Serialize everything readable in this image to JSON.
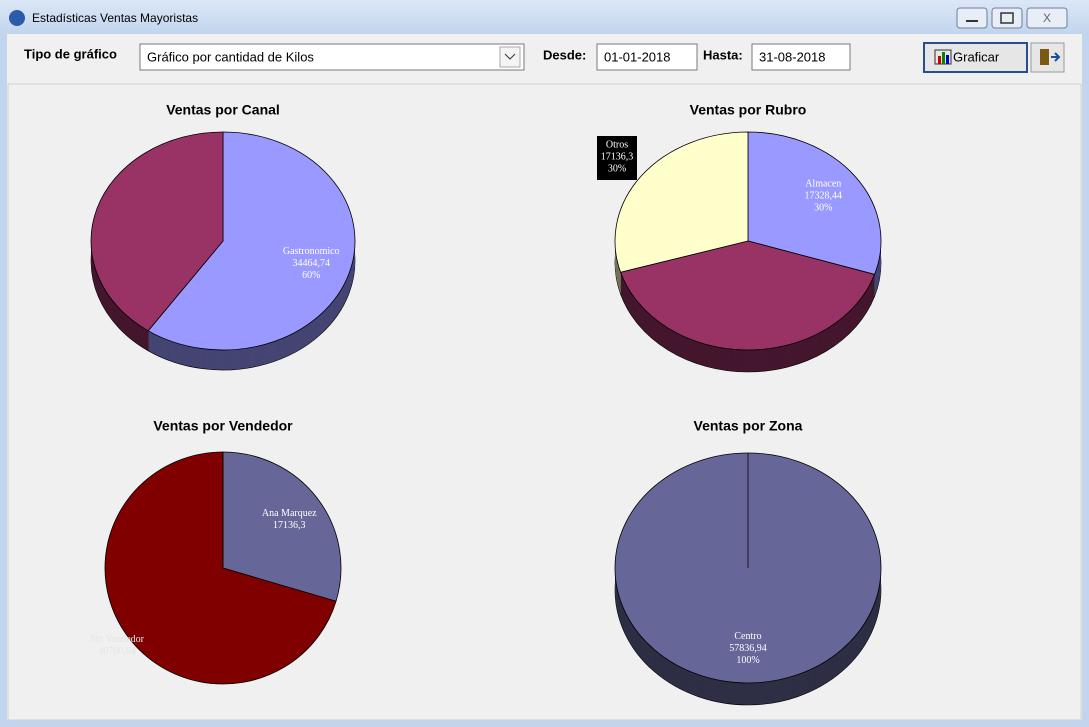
{
  "window": {
    "title": "Estadísticas Ventas Mayoristas"
  },
  "toolbar": {
    "type_label": "Tipo de gráfico",
    "type_value": "Gráfico por cantidad de Kilos",
    "from_label": "Desde:",
    "from_value": "01-01-2018",
    "to_label": "Hasta:",
    "to_value": "31-08-2018",
    "plot_button": "Graficar"
  },
  "chart_data": [
    {
      "type": "pie",
      "title": "Ventas por Canal",
      "categories": [
        "Gastronomico",
        null
      ],
      "values": [
        34464.74,
        23372.2
      ],
      "value_labels": [
        "34464,74",
        null
      ],
      "percent_labels": [
        "60%",
        null
      ],
      "colors": [
        "#9999ff",
        "#993366"
      ]
    },
    {
      "type": "pie",
      "title": "Ventas por Rubro",
      "categories": [
        "Almacen",
        null,
        "Otros"
      ],
      "values": [
        17328.44,
        23372.2,
        17136.3
      ],
      "value_labels": [
        "17328,44",
        null,
        "17136,3"
      ],
      "percent_labels": [
        "30%",
        null,
        "30%"
      ],
      "colors": [
        "#9999ff",
        "#993366",
        "#ffffcc"
      ]
    },
    {
      "type": "pie",
      "title": "Ventas por Vendedor",
      "categories": [
        "Ana Marquez",
        "Sin Vendedor"
      ],
      "values": [
        17136.3,
        40700.64
      ],
      "value_labels": [
        "17136,3",
        "40700,64"
      ],
      "colors": [
        "#666699",
        "#800000"
      ]
    },
    {
      "type": "pie",
      "title": "Ventas por Zona",
      "categories": [
        "Centro"
      ],
      "values": [
        57836.94
      ],
      "value_labels": [
        "57836,94"
      ],
      "percent_labels": [
        "100%"
      ],
      "colors": [
        "#666699"
      ]
    }
  ]
}
